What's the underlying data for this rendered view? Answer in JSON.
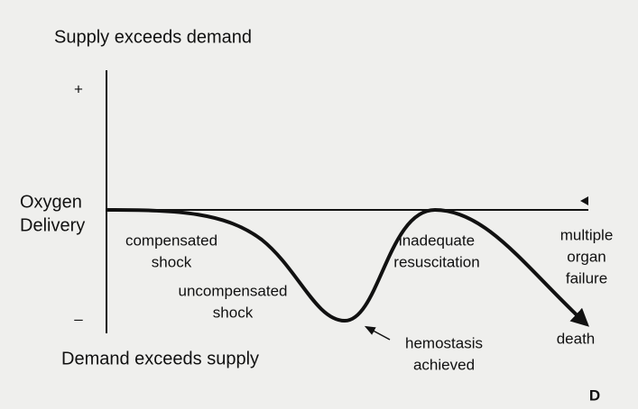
{
  "top_label": "Supply exceeds demand",
  "bottom_label": "Demand exceeds supply",
  "y_axis": {
    "plus": "+",
    "minus": "–",
    "label": [
      "Oxygen",
      "Delivery"
    ]
  },
  "annotations": {
    "compensated_shock": [
      "compensated",
      "shock"
    ],
    "uncompensated_shock": [
      "uncompensated",
      "shock"
    ],
    "inadequate_resuscitation": [
      "inadequate",
      "resuscitation"
    ],
    "multiple_organ_failure": [
      "multiple",
      "organ",
      "failure"
    ],
    "death": "death",
    "hemostasis_achieved": [
      "hemostasis",
      "achieved"
    ]
  },
  "panel_letter": "D"
}
